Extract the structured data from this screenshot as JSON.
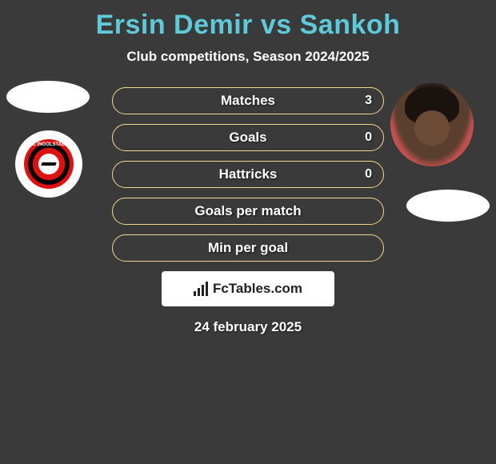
{
  "header": {
    "title": "Ersin Demir vs Sankoh",
    "subtitle": "Club competitions, Season 2024/2025"
  },
  "colors": {
    "background": "#3a3a3a",
    "title": "#5dc9d9",
    "text": "#ffffff",
    "pill_border": "#f0d98a",
    "attribution_bg": "#ffffff",
    "attribution_text": "#222222"
  },
  "stats": [
    {
      "label": "Matches",
      "right_value": "3"
    },
    {
      "label": "Goals",
      "right_value": "0"
    },
    {
      "label": "Hattricks",
      "right_value": "0"
    },
    {
      "label": "Goals per match",
      "right_value": ""
    },
    {
      "label": "Min per goal",
      "right_value": ""
    }
  ],
  "layout": {
    "pill_width": 340,
    "pill_height": 34,
    "pill_radius": 17,
    "pill_gap": 12
  },
  "attribution": {
    "label": "FcTables.com"
  },
  "footer": {
    "date": "24 february 2025"
  },
  "club_badge": {
    "top_text": "FC INGOLSTADT",
    "name": "fc-ingolstadt-badge",
    "outer_color": "#d11",
    "ring_color": "#000",
    "center_color": "#fff"
  },
  "players": {
    "left": {
      "name": "Ersin Demir",
      "has_photo": false
    },
    "right": {
      "name": "Sankoh",
      "has_photo": true
    }
  }
}
